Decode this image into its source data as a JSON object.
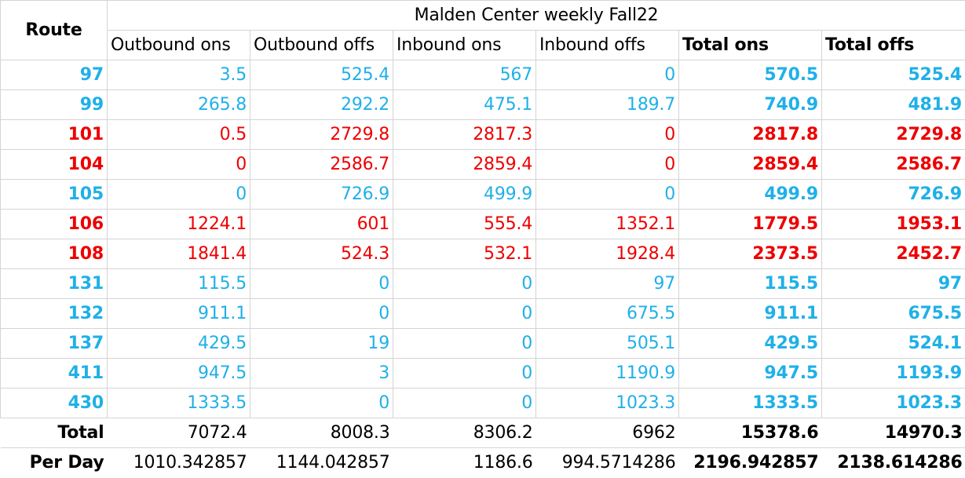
{
  "table": {
    "title": "Malden Center weekly Fall22",
    "route_header": "Route",
    "headers": [
      "Outbound ons",
      "Outbound offs",
      "Inbound ons",
      "Inbound offs",
      "Total ons",
      "Total offs"
    ],
    "rows": [
      {
        "route": "97",
        "values": [
          "3.5",
          "525.4",
          "567",
          "0",
          "570.5",
          "525.4"
        ],
        "color": "blue"
      },
      {
        "route": "99",
        "values": [
          "265.8",
          "292.2",
          "475.1",
          "189.7",
          "740.9",
          "481.9"
        ],
        "color": "blue"
      },
      {
        "route": "101",
        "values": [
          "0.5",
          "2729.8",
          "2817.3",
          "0",
          "2817.8",
          "2729.8"
        ],
        "color": "red"
      },
      {
        "route": "104",
        "values": [
          "0",
          "2586.7",
          "2859.4",
          "0",
          "2859.4",
          "2586.7"
        ],
        "color": "red"
      },
      {
        "route": "105",
        "values": [
          "0",
          "726.9",
          "499.9",
          "0",
          "499.9",
          "726.9"
        ],
        "color": "blue"
      },
      {
        "route": "106",
        "values": [
          "1224.1",
          "601",
          "555.4",
          "1352.1",
          "1779.5",
          "1953.1"
        ],
        "color": "red"
      },
      {
        "route": "108",
        "values": [
          "1841.4",
          "524.3",
          "532.1",
          "1928.4",
          "2373.5",
          "2452.7"
        ],
        "color": "red"
      },
      {
        "route": "131",
        "values": [
          "115.5",
          "0",
          "0",
          "97",
          "115.5",
          "97"
        ],
        "color": "blue"
      },
      {
        "route": "132",
        "values": [
          "911.1",
          "0",
          "0",
          "675.5",
          "911.1",
          "675.5"
        ],
        "color": "blue"
      },
      {
        "route": "137",
        "values": [
          "429.5",
          "19",
          "0",
          "505.1",
          "429.5",
          "524.1"
        ],
        "color": "blue"
      },
      {
        "route": "411",
        "values": [
          "947.5",
          "3",
          "0",
          "1190.9",
          "947.5",
          "1193.9"
        ],
        "color": "blue"
      },
      {
        "route": "430",
        "values": [
          "1333.5",
          "0",
          "0",
          "1023.3",
          "1333.5",
          "1023.3"
        ],
        "color": "blue"
      }
    ],
    "total": {
      "label": "Total",
      "values": [
        "7072.4",
        "8008.3",
        "8306.2",
        "6962",
        "15378.6",
        "14970.3"
      ]
    },
    "per_day": {
      "label": "Per Day",
      "values": [
        "1010.342857",
        "1144.042857",
        "1186.6",
        "994.5714286",
        "2196.942857",
        "2138.614286"
      ]
    }
  },
  "colors": {
    "blue": "#1fb0e8",
    "red": "#ee0000"
  }
}
